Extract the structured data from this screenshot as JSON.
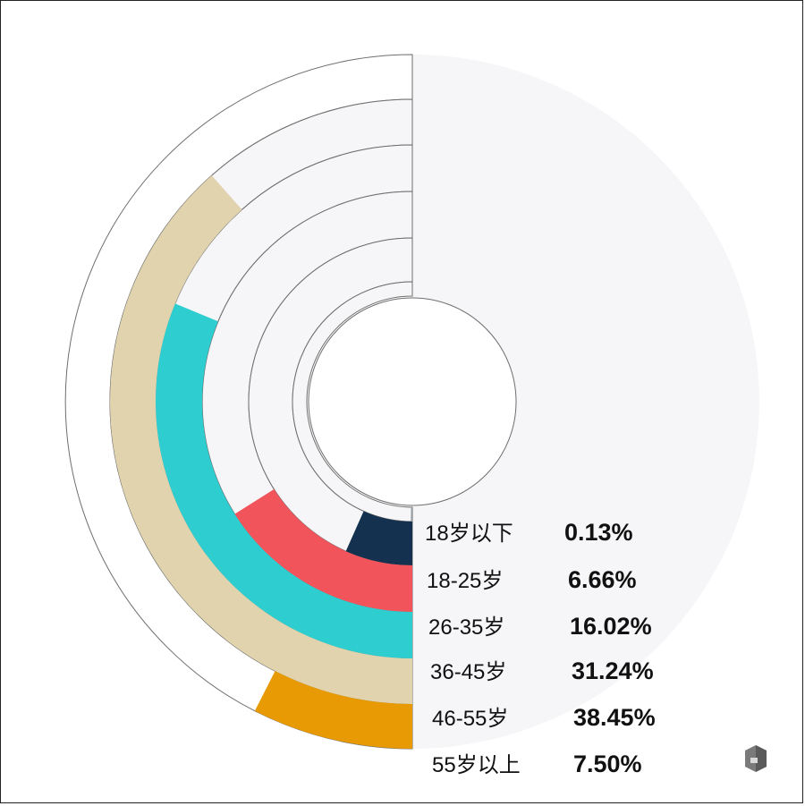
{
  "chart_data": {
    "type": "radial-bar",
    "categories": [
      "18岁以下",
      "18-25岁",
      "26-35岁",
      "36-45岁",
      "46-55岁",
      "55岁以上"
    ],
    "values": [
      0.13,
      6.66,
      16.02,
      31.24,
      38.45,
      7.5
    ],
    "value_labels": [
      "0.13%",
      "6.66%",
      "16.02%",
      "31.24%",
      "38.45%",
      "7.50%"
    ],
    "max_value": 50,
    "colors": [
      "#9aa0a6",
      "#14324f",
      "#f2545b",
      "#2ecdcf",
      "#e0d3ae",
      "#e89a05"
    ],
    "track_color": "#f6f5f7",
    "title": "",
    "xlabel": "",
    "ylabel": ""
  }
}
